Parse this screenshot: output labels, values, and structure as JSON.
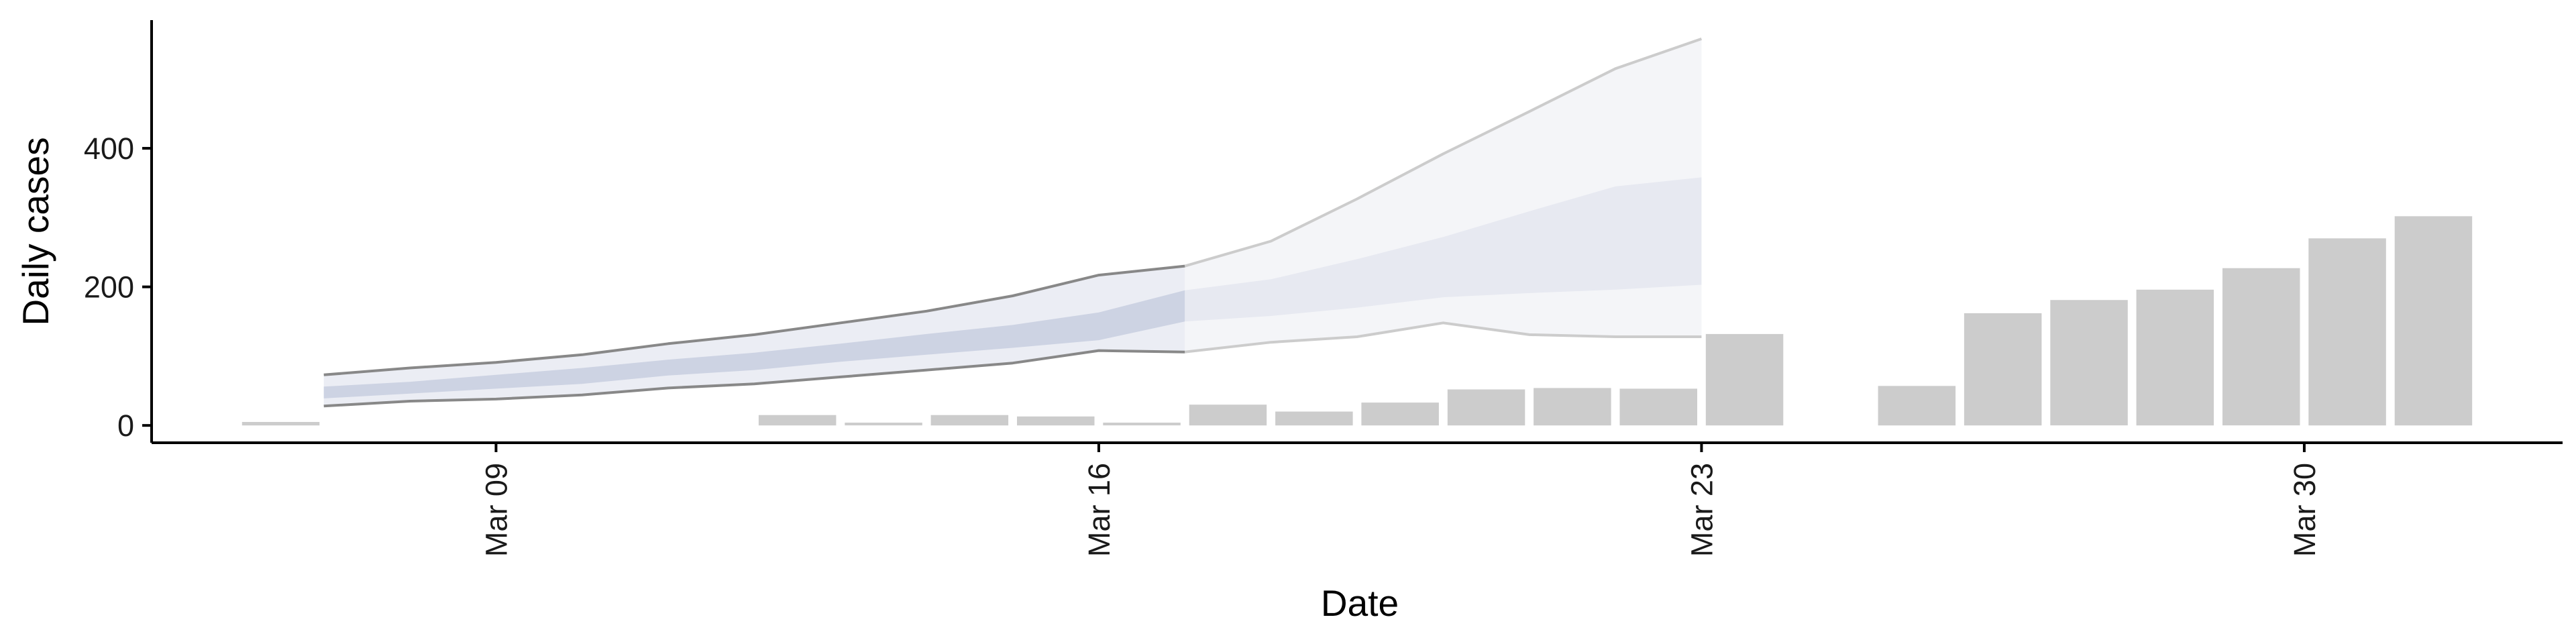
{
  "chart_data": {
    "type": "bar",
    "title": "",
    "xlabel": "Date",
    "ylabel": "Daily cases",
    "ylim": [
      -25,
      585
    ],
    "y_ticks": [
      0,
      200,
      400
    ],
    "x_ticks": [
      {
        "date": "2020-03-09",
        "label": "Mar 09"
      },
      {
        "date": "2020-03-16",
        "label": "Mar 16"
      },
      {
        "date": "2020-03-23",
        "label": "Mar 23"
      },
      {
        "date": "2020-03-30",
        "label": "Mar 30"
      }
    ],
    "x_range": [
      "2020-03-05",
      "2020-04-02"
    ],
    "grid": false,
    "legend": "none",
    "bars": [
      {
        "date": "2020-03-07",
        "value": 5
      },
      {
        "date": "2020-03-08",
        "value": 0
      },
      {
        "date": "2020-03-09",
        "value": 0
      },
      {
        "date": "2020-03-10",
        "value": 0
      },
      {
        "date": "2020-03-11",
        "value": 0
      },
      {
        "date": "2020-03-12",
        "value": 0
      },
      {
        "date": "2020-03-13",
        "value": 15
      },
      {
        "date": "2020-03-14",
        "value": 4
      },
      {
        "date": "2020-03-15",
        "value": 15
      },
      {
        "date": "2020-03-16",
        "value": 13
      },
      {
        "date": "2020-03-17",
        "value": 4
      },
      {
        "date": "2020-03-18",
        "value": 30
      },
      {
        "date": "2020-03-19",
        "value": 20
      },
      {
        "date": "2020-03-20",
        "value": 33
      },
      {
        "date": "2020-03-21",
        "value": 52
      },
      {
        "date": "2020-03-22",
        "value": 54
      },
      {
        "date": "2020-03-23",
        "value": 53
      },
      {
        "date": "2020-03-24",
        "value": 132
      },
      {
        "date": "2020-03-25",
        "value": 0
      },
      {
        "date": "2020-03-26",
        "value": 57
      },
      {
        "date": "2020-03-27",
        "value": 162
      },
      {
        "date": "2020-03-28",
        "value": 181
      },
      {
        "date": "2020-03-29",
        "value": 196
      },
      {
        "date": "2020-03-30",
        "value": 227
      },
      {
        "date": "2020-03-31",
        "value": 270
      },
      {
        "date": "2020-04-01",
        "value": 302
      }
    ],
    "bands": {
      "dates": [
        "2020-03-07",
        "2020-03-08",
        "2020-03-09",
        "2020-03-10",
        "2020-03-11",
        "2020-03-12",
        "2020-03-13",
        "2020-03-14",
        "2020-03-15",
        "2020-03-16",
        "2020-03-17",
        "2020-03-18",
        "2020-03-19",
        "2020-03-20",
        "2020-03-21",
        "2020-03-22",
        "2020-03-23"
      ],
      "outer_lower": [
        28,
        35,
        38,
        44,
        54,
        60,
        70,
        80,
        90,
        108,
        106,
        120,
        128,
        148,
        131,
        128,
        128
      ],
      "outer_upper": [
        73,
        83,
        91,
        102,
        118,
        131,
        148,
        165,
        187,
        217,
        230,
        266,
        327,
        392,
        453,
        515,
        558
      ],
      "inner_lower": [
        39,
        46,
        53,
        60,
        72,
        80,
        92,
        102,
        112,
        123,
        150,
        158,
        170,
        185,
        191,
        196,
        203
      ],
      "inner_upper": [
        56,
        63,
        73,
        83,
        95,
        105,
        118,
        132,
        145,
        163,
        195,
        211,
        240,
        272,
        309,
        345,
        358
      ]
    },
    "colors": {
      "bar": "#cccccc",
      "inner_band_observed": "#cdd3e3",
      "outer_band_observed": "#ebedf4",
      "inner_band_forecast": "#e7e9f1",
      "outer_band_forecast": "#f4f5f8",
      "outer_line_observed": "#888888",
      "outer_line_forecast": "#cccccc",
      "axis": "#000000"
    }
  }
}
